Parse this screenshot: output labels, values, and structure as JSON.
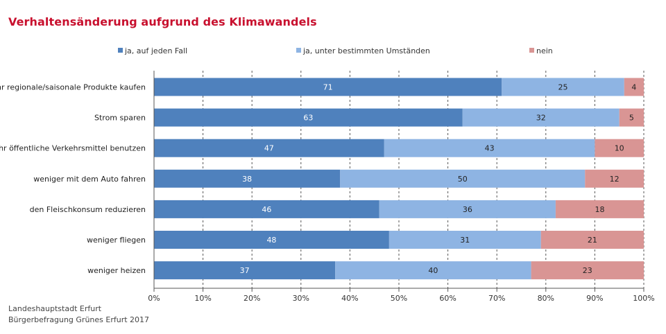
{
  "chart_data": {
    "type": "bar",
    "orientation": "horizontal",
    "stacked": "percent",
    "title": "Verhaltensänderung aufgrund des Klimawandels",
    "categories": [
      "mehr regionale/saisonale Produkte kaufen",
      "Strom sparen",
      "mehr öffentliche Verkehrsmittel benutzen",
      "weniger mit dem Auto fahren",
      "den Fleischkonsum reduzieren",
      "weniger fliegen",
      "weniger heizen"
    ],
    "series": [
      {
        "name": "ja, auf jeden Fall",
        "values": [
          71,
          63,
          47,
          38,
          46,
          48,
          37
        ],
        "color": "#4f81bd"
      },
      {
        "name": "ja, unter bestimmten Umständen",
        "values": [
          25,
          32,
          43,
          50,
          36,
          31,
          40
        ],
        "color": "#8eb4e3"
      },
      {
        "name": "nein",
        "values": [
          4,
          5,
          10,
          12,
          18,
          21,
          23
        ],
        "color": "#d99594"
      }
    ],
    "xlim": [
      0,
      100
    ],
    "x_ticks": [
      "0%",
      "10%",
      "20%",
      "30%",
      "40%",
      "50%",
      "60%",
      "70%",
      "80%",
      "90%",
      "100%"
    ],
    "grid": true,
    "legend_position": "top"
  },
  "source": {
    "line1": "Landeshauptstadt Erfurt",
    "line2": "Bürgerbefragung Grünes Erfurt 2017"
  }
}
